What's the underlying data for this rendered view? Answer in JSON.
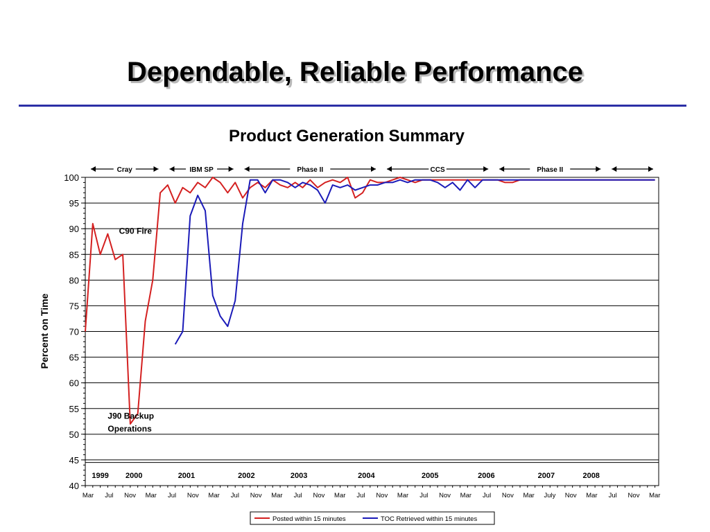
{
  "slide": {
    "title": "Dependable, Reliable Performance"
  },
  "chart_data": {
    "type": "line",
    "title": "Product Generation Summary",
    "ylabel": "Percent on Time",
    "ylim": [
      40,
      100
    ],
    "yticks": [
      40,
      45,
      50,
      55,
      60,
      65,
      70,
      75,
      80,
      85,
      90,
      95,
      100
    ],
    "grid": true,
    "legend_position": "bottom-center",
    "x_tick_labels": [
      "Mar",
      "Jul",
      "Nov",
      "Mar",
      "Jul",
      "Nov",
      "Mar",
      "Jul",
      "Nov",
      "Mar",
      "Jul",
      "Nov",
      "Mar",
      "Jul",
      "Nov",
      "Mar",
      "Jul",
      "Nov",
      "Mar",
      "Jul",
      "Nov",
      "Mar",
      "July",
      "Nov",
      "Mar",
      "Jul",
      "Nov",
      "Mar"
    ],
    "year_labels": [
      {
        "label": "1999",
        "month": 2.0
      },
      {
        "label": "2000",
        "month": 6.5
      },
      {
        "label": "2001",
        "month": 13.5
      },
      {
        "label": "2002",
        "month": 21.5
      },
      {
        "label": "2003",
        "month": 28.5
      },
      {
        "label": "2004",
        "month": 37.5
      },
      {
        "label": "2005",
        "month": 46.0
      },
      {
        "label": "2006",
        "month": 53.5
      },
      {
        "label": "2007",
        "month": 61.5
      },
      {
        "label": "2008",
        "month": 67.5
      }
    ],
    "phases": [
      {
        "label": "Cray",
        "start": 0,
        "end": 10.5
      },
      {
        "label": "IBM SP",
        "start": 10.5,
        "end": 20.5
      },
      {
        "label": "Phase II",
        "start": 20.5,
        "end": 39.5
      },
      {
        "label": "CCS",
        "start": 39.5,
        "end": 54.5
      },
      {
        "label": "Phase II",
        "start": 54.5,
        "end": 69.5
      },
      {
        "label": "",
        "start": 69.5,
        "end": 76.5
      }
    ],
    "annotations": [
      {
        "text": "C90 Fire",
        "month": 4.5,
        "value": 89
      },
      {
        "text": "J90 Backup",
        "month": 3.0,
        "value": 53
      },
      {
        "text": "Operations",
        "month": 3.0,
        "value": 50.5
      }
    ],
    "series": [
      {
        "name": "Posted within 15 minutes",
        "color": "#d42020",
        "x": [
          0,
          1,
          2,
          3,
          4,
          5,
          6,
          7,
          8,
          9,
          10,
          11,
          12,
          13,
          14,
          15,
          16,
          17,
          18,
          19,
          20,
          21,
          22,
          23,
          24,
          25,
          26,
          27,
          28,
          29,
          30,
          31,
          32,
          33,
          34,
          35,
          36,
          37,
          38,
          39,
          40,
          41,
          42,
          43,
          44,
          45,
          46,
          47,
          48,
          49,
          50,
          51,
          52,
          53,
          54,
          55,
          56,
          57,
          58,
          59,
          60,
          61,
          62,
          63,
          64,
          65,
          66,
          67,
          68,
          69,
          70,
          71,
          72,
          73,
          74,
          75,
          76
        ],
        "y": [
          70,
          91,
          85,
          89,
          84,
          85,
          52,
          54,
          72,
          80,
          97,
          98.5,
          95,
          98,
          97,
          99,
          98,
          100,
          99,
          97,
          99,
          96,
          98,
          99,
          98,
          99.5,
          98.5,
          98,
          99,
          98,
          99.5,
          98,
          99,
          99.5,
          99,
          100,
          96,
          97,
          99.5,
          99,
          99,
          99.5,
          100,
          99.5,
          99,
          99.5,
          99.5,
          99.5,
          99.5,
          99.5,
          99.5,
          99.5,
          99.5,
          99.5,
          99.5,
          99.5,
          99,
          99,
          99.5,
          99.5,
          99.5,
          99.5,
          99.5,
          99.5,
          99.5,
          99.5,
          99.5,
          99.5,
          99.5,
          99.5,
          99.5,
          99.5,
          99.5,
          99.5,
          99.5,
          99.5,
          99.5
        ]
      },
      {
        "name": "TOC Retrieved within 15 minutes",
        "color": "#1a1ab8",
        "x": [
          12,
          13,
          14,
          15,
          16,
          17,
          18,
          19,
          20,
          21,
          22,
          23,
          24,
          25,
          26,
          27,
          28,
          29,
          30,
          31,
          32,
          33,
          34,
          35,
          36,
          37,
          38,
          39,
          40,
          41,
          42,
          43,
          44,
          45,
          46,
          47,
          48,
          49,
          50,
          51,
          52,
          53,
          54,
          55,
          56,
          57,
          58,
          59,
          60,
          61,
          62,
          63,
          64,
          65,
          66,
          67,
          68,
          69,
          70,
          71,
          72,
          73,
          74,
          75,
          76
        ],
        "y": [
          67.5,
          70,
          92.5,
          96.5,
          93.5,
          77,
          73,
          71,
          76,
          91,
          99.5,
          99.5,
          97,
          99.5,
          99.5,
          99,
          98,
          99,
          98.5,
          97.5,
          95,
          98.5,
          98,
          98.5,
          97.5,
          98,
          98.5,
          98.5,
          99,
          99,
          99.5,
          99,
          99.5,
          99.5,
          99.5,
          99,
          98,
          99,
          97.5,
          99.5,
          98,
          99.5,
          99.5,
          99.5,
          99.5,
          99.5,
          99.5,
          99.5,
          99.5,
          99.5,
          99.5,
          99.5,
          99.5,
          99.5,
          99.5,
          99.5,
          99.5,
          99.5,
          99.5,
          99.5,
          99.5,
          99.5,
          99.5,
          99.5,
          99.5
        ]
      }
    ]
  }
}
